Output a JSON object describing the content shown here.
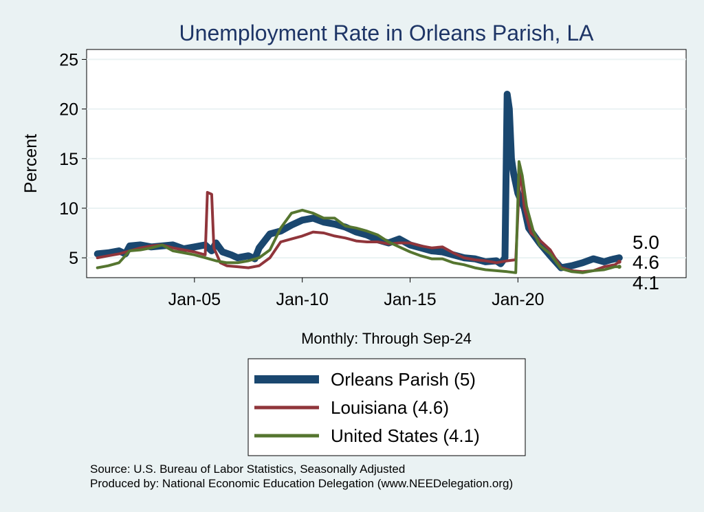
{
  "chart_data": {
    "type": "line",
    "title": "Unemployment Rate in Orleans Parish, LA",
    "ylabel": "Percent",
    "xlabel": "Monthly: Through Sep-24",
    "ylim": [
      3,
      26
    ],
    "xlim": [
      2000.0,
      2027.8
    ],
    "yticks": [
      5,
      10,
      15,
      20,
      25
    ],
    "xticks": [
      {
        "value": 2005.0,
        "label": "Jan-05"
      },
      {
        "value": 2010.0,
        "label": "Jan-10"
      },
      {
        "value": 2015.0,
        "label": "Jan-15"
      },
      {
        "value": 2020.0,
        "label": "Jan-20"
      }
    ],
    "grid": true,
    "legend_position": "bottom",
    "series": [
      {
        "name": "Orleans Parish",
        "legend_label": "Orleans Parish  (5)",
        "end_label": "5.0",
        "color": "#1a476f",
        "points": [
          [
            2000.5,
            5.4
          ],
          [
            2001.0,
            5.5
          ],
          [
            2001.5,
            5.7
          ],
          [
            2001.8,
            5.4
          ],
          [
            2002.0,
            6.2
          ],
          [
            2002.5,
            6.3
          ],
          [
            2003.0,
            6.1
          ],
          [
            2003.5,
            6.2
          ],
          [
            2004.0,
            6.3
          ],
          [
            2004.5,
            5.9
          ],
          [
            2005.0,
            6.1
          ],
          [
            2005.5,
            6.3
          ],
          [
            2005.8,
            5.7
          ],
          [
            2006.0,
            6.5
          ],
          [
            2006.3,
            5.6
          ],
          [
            2006.7,
            5.3
          ],
          [
            2007.0,
            5.0
          ],
          [
            2007.5,
            5.2
          ],
          [
            2007.8,
            4.9
          ],
          [
            2008.0,
            6.0
          ],
          [
            2008.5,
            7.4
          ],
          [
            2009.0,
            7.7
          ],
          [
            2009.5,
            8.3
          ],
          [
            2010.0,
            8.8
          ],
          [
            2010.5,
            9.0
          ],
          [
            2011.0,
            8.6
          ],
          [
            2011.5,
            8.4
          ],
          [
            2012.0,
            8.1
          ],
          [
            2012.5,
            7.6
          ],
          [
            2013.0,
            7.3
          ],
          [
            2013.5,
            6.8
          ],
          [
            2014.0,
            6.5
          ],
          [
            2014.5,
            6.9
          ],
          [
            2015.0,
            6.3
          ],
          [
            2015.5,
            6.0
          ],
          [
            2016.0,
            5.7
          ],
          [
            2016.5,
            5.6
          ],
          [
            2017.0,
            5.3
          ],
          [
            2017.5,
            5.0
          ],
          [
            2018.0,
            4.9
          ],
          [
            2018.5,
            4.6
          ],
          [
            2019.0,
            4.7
          ],
          [
            2019.2,
            4.4
          ],
          [
            2019.4,
            5.0
          ],
          [
            2019.5,
            21.5
          ],
          [
            2019.6,
            20.0
          ],
          [
            2019.7,
            15.0
          ],
          [
            2019.8,
            13.5
          ],
          [
            2020.0,
            11.5
          ],
          [
            2020.3,
            10.0
          ],
          [
            2020.5,
            8.0
          ],
          [
            2021.0,
            6.5
          ],
          [
            2021.5,
            5.2
          ],
          [
            2022.0,
            4.0
          ],
          [
            2022.5,
            4.2
          ],
          [
            2023.0,
            4.5
          ],
          [
            2023.5,
            4.9
          ],
          [
            2024.0,
            4.6
          ],
          [
            2024.3,
            4.8
          ],
          [
            2024.7,
            5.0
          ]
        ]
      },
      {
        "name": "Louisiana",
        "legend_label": "Louisiana (4.6)",
        "end_label": "4.6",
        "color": "#90353b",
        "points": [
          [
            2000.5,
            5.0
          ],
          [
            2001.0,
            5.2
          ],
          [
            2001.5,
            5.4
          ],
          [
            2002.0,
            5.7
          ],
          [
            2002.5,
            6.0
          ],
          [
            2003.0,
            6.2
          ],
          [
            2003.5,
            6.3
          ],
          [
            2004.0,
            6.0
          ],
          [
            2004.5,
            5.8
          ],
          [
            2005.0,
            5.6
          ],
          [
            2005.5,
            5.3
          ],
          [
            2005.6,
            11.6
          ],
          [
            2005.8,
            11.4
          ],
          [
            2005.9,
            6.0
          ],
          [
            2006.2,
            4.5
          ],
          [
            2006.5,
            4.2
          ],
          [
            2007.0,
            4.1
          ],
          [
            2007.5,
            4.0
          ],
          [
            2008.0,
            4.2
          ],
          [
            2008.5,
            5.0
          ],
          [
            2009.0,
            6.6
          ],
          [
            2009.5,
            6.9
          ],
          [
            2010.0,
            7.2
          ],
          [
            2010.5,
            7.6
          ],
          [
            2011.0,
            7.5
          ],
          [
            2011.5,
            7.2
          ],
          [
            2012.0,
            7.0
          ],
          [
            2012.5,
            6.7
          ],
          [
            2013.0,
            6.6
          ],
          [
            2013.5,
            6.6
          ],
          [
            2014.0,
            6.4
          ],
          [
            2014.5,
            6.5
          ],
          [
            2015.0,
            6.5
          ],
          [
            2015.5,
            6.2
          ],
          [
            2016.0,
            6.0
          ],
          [
            2016.5,
            6.1
          ],
          [
            2017.0,
            5.5
          ],
          [
            2017.5,
            5.0
          ],
          [
            2018.0,
            4.8
          ],
          [
            2018.5,
            4.7
          ],
          [
            2019.0,
            4.5
          ],
          [
            2019.5,
            4.7
          ],
          [
            2019.9,
            4.8
          ],
          [
            2020.1,
            14.2
          ],
          [
            2020.3,
            10.0
          ],
          [
            2020.6,
            7.5
          ],
          [
            2021.0,
            6.8
          ],
          [
            2021.5,
            5.8
          ],
          [
            2022.0,
            4.0
          ],
          [
            2022.5,
            3.7
          ],
          [
            2023.0,
            3.6
          ],
          [
            2023.5,
            3.7
          ],
          [
            2024.0,
            4.1
          ],
          [
            2024.5,
            4.3
          ],
          [
            2024.7,
            4.6
          ]
        ]
      },
      {
        "name": "United States",
        "legend_label": "United States (4.1)",
        "end_label": "4.1",
        "color": "#55752f",
        "points": [
          [
            2000.5,
            4.0
          ],
          [
            2001.0,
            4.2
          ],
          [
            2001.5,
            4.5
          ],
          [
            2002.0,
            5.7
          ],
          [
            2002.5,
            5.8
          ],
          [
            2003.0,
            6.0
          ],
          [
            2003.5,
            6.3
          ],
          [
            2004.0,
            5.7
          ],
          [
            2004.5,
            5.5
          ],
          [
            2005.0,
            5.3
          ],
          [
            2005.5,
            5.0
          ],
          [
            2006.0,
            4.7
          ],
          [
            2006.5,
            4.5
          ],
          [
            2007.0,
            4.5
          ],
          [
            2007.5,
            4.7
          ],
          [
            2008.0,
            5.0
          ],
          [
            2008.5,
            5.8
          ],
          [
            2009.0,
            8.0
          ],
          [
            2009.5,
            9.5
          ],
          [
            2010.0,
            9.8
          ],
          [
            2010.5,
            9.5
          ],
          [
            2011.0,
            9.0
          ],
          [
            2011.5,
            9.0
          ],
          [
            2012.0,
            8.2
          ],
          [
            2012.5,
            8.0
          ],
          [
            2013.0,
            7.7
          ],
          [
            2013.5,
            7.3
          ],
          [
            2014.0,
            6.6
          ],
          [
            2014.5,
            6.1
          ],
          [
            2015.0,
            5.6
          ],
          [
            2015.5,
            5.2
          ],
          [
            2016.0,
            4.9
          ],
          [
            2016.5,
            4.9
          ],
          [
            2017.0,
            4.5
          ],
          [
            2017.5,
            4.3
          ],
          [
            2018.0,
            4.0
          ],
          [
            2018.5,
            3.8
          ],
          [
            2019.0,
            3.7
          ],
          [
            2019.5,
            3.6
          ],
          [
            2019.9,
            3.5
          ],
          [
            2020.05,
            14.7
          ],
          [
            2020.2,
            13.3
          ],
          [
            2020.4,
            10.2
          ],
          [
            2020.7,
            7.8
          ],
          [
            2021.0,
            6.3
          ],
          [
            2021.5,
            5.4
          ],
          [
            2022.0,
            3.9
          ],
          [
            2022.5,
            3.6
          ],
          [
            2023.0,
            3.5
          ],
          [
            2023.5,
            3.7
          ],
          [
            2024.0,
            3.8
          ],
          [
            2024.5,
            4.1
          ],
          [
            2024.7,
            4.1
          ]
        ]
      }
    ],
    "notes": [
      "Source: U.S. Bureau of Labor Statistics, Seasonally Adjusted",
      "Produced by: National Economic Education Delegation (www.NEEDelegation.org)"
    ]
  }
}
